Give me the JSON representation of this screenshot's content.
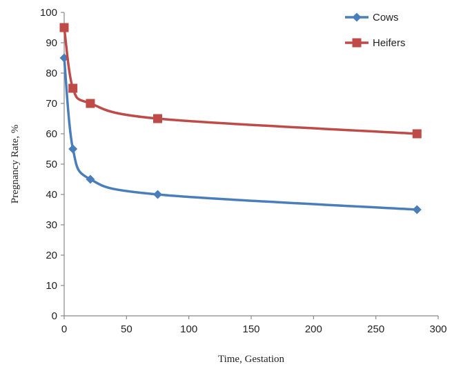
{
  "chart_data": {
    "type": "line",
    "title": "",
    "xlabel": "Time, Gestation",
    "ylabel": "Pregnancy Rate, %",
    "xlim": [
      0,
      300
    ],
    "ylim": [
      0,
      100
    ],
    "xticks": [
      0,
      50,
      100,
      150,
      200,
      250,
      300
    ],
    "yticks": [
      0,
      10,
      20,
      30,
      40,
      50,
      60,
      70,
      80,
      90,
      100
    ],
    "grid": false,
    "legend_position": "top-right",
    "series": [
      {
        "name": "Cows",
        "color": "#4a7ebb",
        "marker": "diamond",
        "x": [
          0,
          7,
          21,
          75,
          283
        ],
        "y": [
          85,
          55,
          45,
          40,
          35
        ]
      },
      {
        "name": "Heifers",
        "color": "#be4b48",
        "marker": "square",
        "x": [
          0,
          7,
          21,
          75,
          283
        ],
        "y": [
          95,
          75,
          70,
          65,
          60
        ]
      }
    ]
  }
}
